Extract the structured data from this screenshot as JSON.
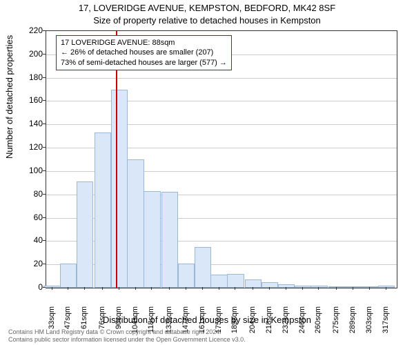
{
  "chart": {
    "type": "histogram",
    "title_line1": "17, LOVERIDGE AVENUE, KEMPSTON, BEDFORD, MK42 8SF",
    "title_line2": "Size of property relative to detached houses in Kempston",
    "xlabel": "Distribution of detached houses by size in Kempston",
    "ylabel": "Number of detached properties",
    "title_fontsize": 13,
    "label_fontsize": 13,
    "tick_fontsize": 12,
    "background_color": "#ffffff",
    "grid_color": "#cccccc",
    "axis_color": "#333333",
    "bar_fill": "#d9e7f8",
    "bar_border": "#9bb8d8",
    "marker_color": "#cc0000",
    "marker_value": 88,
    "xlim": [
      28,
      326
    ],
    "ylim": [
      0,
      220
    ],
    "ytick_step": 20,
    "yticks": [
      0,
      20,
      40,
      60,
      80,
      100,
      120,
      140,
      160,
      180,
      200,
      220
    ],
    "xticks": [
      33,
      47,
      61,
      76,
      90,
      104,
      118,
      133,
      147,
      161,
      175,
      189,
      204,
      218,
      232,
      246,
      260,
      275,
      289,
      303,
      317
    ],
    "xtick_suffix": "sqm",
    "bin_width": 14.2,
    "bars": [
      {
        "x": 33,
        "h": 2
      },
      {
        "x": 47,
        "h": 21
      },
      {
        "x": 61,
        "h": 91
      },
      {
        "x": 76,
        "h": 133
      },
      {
        "x": 90,
        "h": 170
      },
      {
        "x": 104,
        "h": 110
      },
      {
        "x": 118,
        "h": 83
      },
      {
        "x": 133,
        "h": 82
      },
      {
        "x": 147,
        "h": 21
      },
      {
        "x": 161,
        "h": 35
      },
      {
        "x": 175,
        "h": 11
      },
      {
        "x": 189,
        "h": 12
      },
      {
        "x": 204,
        "h": 7
      },
      {
        "x": 218,
        "h": 5
      },
      {
        "x": 232,
        "h": 3
      },
      {
        "x": 246,
        "h": 2
      },
      {
        "x": 260,
        "h": 2
      },
      {
        "x": 275,
        "h": 1
      },
      {
        "x": 289,
        "h": 1
      },
      {
        "x": 303,
        "h": 1
      },
      {
        "x": 317,
        "h": 2
      }
    ],
    "annotation": {
      "line1": "17 LOVERIDGE AVENUE: 88sqm",
      "line2": "← 26% of detached houses are smaller (207)",
      "line3": "73% of semi-detached houses are larger (577) →",
      "border_color": "#cc0000",
      "fontsize": 11
    },
    "footer_line1": "Contains HM Land Registry data © Crown copyright and database right 2024.",
    "footer_line2": "Contains public sector information licensed under the Open Government Licence v3.0.",
    "footer_color": "#666666",
    "footer_fontsize": 9
  }
}
